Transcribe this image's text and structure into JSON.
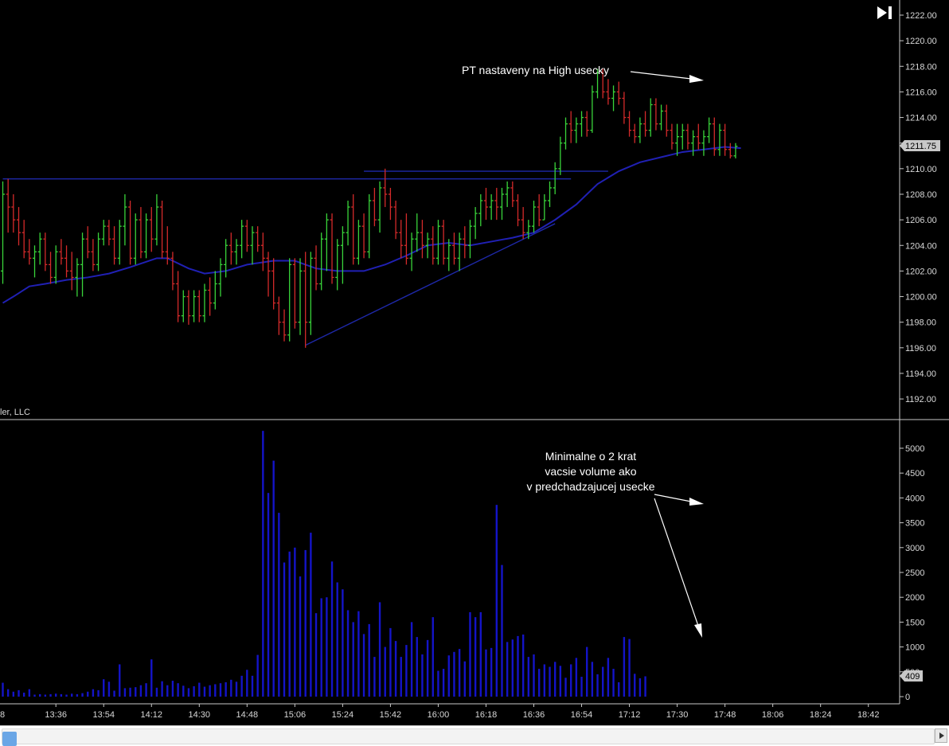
{
  "colors": {
    "background": "#000000",
    "up_bar": "#39d43a",
    "down_bar": "#d42a2a",
    "volume_bar": "#1414c8",
    "moving_average": "#2020b4",
    "trend_lines": "#1e28a8",
    "axis_text": "#d8d8d8",
    "annotation_text": "#ffffff",
    "price_marker_bg": "#c8c8c8"
  },
  "branding": {
    "vendor_text": "ler, LLC"
  },
  "annotations": {
    "pt_note": "PT nastaveny na High usecky",
    "volume_note_line1": "Minimalne o 2 krat",
    "volume_note_line2": "vacsie volume ako",
    "volume_note_line3": "v predchadzajucej usecke"
  },
  "markers": {
    "last_price": "1211.75",
    "last_volume": "409"
  },
  "icons": {
    "jump_to_end": "jump-to-end-icon"
  },
  "chart_data": [
    {
      "type": "ohlc",
      "title": "",
      "ylim": [
        1190,
        1223
      ],
      "yticks": [
        1192,
        1194,
        1196,
        1198,
        1200,
        1202,
        1204,
        1206,
        1208,
        1210,
        1212,
        1214,
        1216,
        1218,
        1220,
        1222
      ],
      "ytick_labels": [
        "1192.00",
        "1194.00",
        "1196.00",
        "1198.00",
        "1200.00",
        "1202.00",
        "1204.00",
        "1206.00",
        "1208.00",
        "1210.00",
        "1212.00",
        "1214.00",
        "1216.00",
        "1218.00",
        "1220.00",
        "1222.00"
      ],
      "time_start": "13:16",
      "bar_minutes": 2,
      "bars": [
        [
          1202.0,
          1209.0,
          1201.0,
          1208.0
        ],
        [
          1208.0,
          1209.2,
          1205.0,
          1207.0
        ],
        [
          1207.0,
          1208.0,
          1205.0,
          1206.0
        ],
        [
          1206.0,
          1207.0,
          1204.0,
          1205.0
        ],
        [
          1205.0,
          1206.0,
          1203.0,
          1203.5
        ],
        [
          1203.5,
          1204.5,
          1202.5,
          1203.0
        ],
        [
          1203.0,
          1204.0,
          1201.5,
          1203.5
        ],
        [
          1203.5,
          1205.0,
          1202.5,
          1204.5
        ],
        [
          1204.5,
          1205.0,
          1202.0,
          1202.5
        ],
        [
          1202.5,
          1203.5,
          1201.0,
          1201.5
        ],
        [
          1201.5,
          1204.0,
          1201.0,
          1203.5
        ],
        [
          1203.5,
          1204.5,
          1202.5,
          1203.0
        ],
        [
          1203.0,
          1204.0,
          1201.5,
          1202.0
        ],
        [
          1202.0,
          1203.5,
          1200.5,
          1201.5
        ],
        [
          1201.5,
          1203.0,
          1200.0,
          1202.5
        ],
        [
          1202.5,
          1205.0,
          1200.0,
          1204.5
        ],
        [
          1204.5,
          1205.5,
          1203.0,
          1203.5
        ],
        [
          1203.5,
          1204.5,
          1202.0,
          1202.5
        ],
        [
          1202.5,
          1205.0,
          1202.0,
          1204.5
        ],
        [
          1204.5,
          1206.0,
          1204.0,
          1205.5
        ],
        [
          1205.5,
          1206.0,
          1204.0,
          1204.5
        ],
        [
          1204.5,
          1205.5,
          1202.5,
          1203.0
        ],
        [
          1203.0,
          1206.0,
          1202.5,
          1205.5
        ],
        [
          1205.5,
          1208.0,
          1204.0,
          1207.0
        ],
        [
          1207.0,
          1207.5,
          1202.5,
          1203.0
        ],
        [
          1203.0,
          1206.5,
          1202.5,
          1206.0
        ],
        [
          1206.0,
          1207.0,
          1203.0,
          1203.5
        ],
        [
          1203.5,
          1206.5,
          1203.0,
          1206.0
        ],
        [
          1206.0,
          1207.0,
          1203.5,
          1204.5
        ],
        [
          1204.5,
          1208.0,
          1204.0,
          1207.0
        ],
        [
          1207.0,
          1207.5,
          1203.0,
          1203.5
        ],
        [
          1203.5,
          1205.5,
          1202.5,
          1203.0
        ],
        [
          1203.0,
          1203.5,
          1200.5,
          1201.0
        ],
        [
          1201.0,
          1202.0,
          1198.0,
          1198.5
        ],
        [
          1198.5,
          1200.5,
          1198.0,
          1200.0
        ],
        [
          1200.0,
          1200.5,
          1197.8,
          1198.5
        ],
        [
          1198.5,
          1200.5,
          1198.0,
          1200.0
        ],
        [
          1200.0,
          1200.5,
          1198.0,
          1198.5
        ],
        [
          1198.5,
          1201.0,
          1198.0,
          1200.5
        ],
        [
          1200.5,
          1201.5,
          1198.5,
          1199.5
        ],
        [
          1199.5,
          1202.0,
          1199.0,
          1201.0
        ],
        [
          1201.0,
          1203.0,
          1200.0,
          1202.5
        ],
        [
          1202.5,
          1204.5,
          1201.5,
          1204.0
        ],
        [
          1204.0,
          1205.0,
          1202.5,
          1203.5
        ],
        [
          1203.5,
          1204.5,
          1202.5,
          1204.0
        ],
        [
          1204.0,
          1206.0,
          1203.0,
          1205.5
        ],
        [
          1205.5,
          1206.0,
          1203.5,
          1204.0
        ],
        [
          1204.0,
          1205.5,
          1202.5,
          1205.0
        ],
        [
          1205.0,
          1205.5,
          1203.5,
          1204.0
        ],
        [
          1204.0,
          1205.0,
          1202.0,
          1203.0
        ],
        [
          1203.0,
          1203.5,
          1200.0,
          1202.0
        ],
        [
          1202.0,
          1203.0,
          1199.0,
          1199.5
        ],
        [
          1199.5,
          1200.0,
          1197.0,
          1198.0
        ],
        [
          1198.0,
          1199.0,
          1196.5,
          1197.0
        ],
        [
          1197.0,
          1203.0,
          1196.5,
          1202.5
        ],
        [
          1202.5,
          1203.0,
          1197.5,
          1198.0
        ],
        [
          1198.0,
          1203.0,
          1197.0,
          1202.0
        ],
        [
          1202.0,
          1203.5,
          1196.0,
          1198.0
        ],
        [
          1198.0,
          1203.5,
          1197.0,
          1203.0
        ],
        [
          1203.0,
          1204.0,
          1200.5,
          1201.0
        ],
        [
          1201.0,
          1205.0,
          1200.5,
          1204.5
        ],
        [
          1204.5,
          1206.5,
          1202.0,
          1206.0
        ],
        [
          1206.0,
          1206.5,
          1201.0,
          1201.5
        ],
        [
          1201.5,
          1204.5,
          1200.5,
          1204.0
        ],
        [
          1204.0,
          1205.5,
          1201.0,
          1205.0
        ],
        [
          1205.0,
          1207.5,
          1204.0,
          1207.0
        ],
        [
          1207.0,
          1208.0,
          1202.5,
          1203.0
        ],
        [
          1203.0,
          1206.0,
          1202.5,
          1205.5
        ],
        [
          1205.5,
          1206.5,
          1203.0,
          1203.5
        ],
        [
          1203.5,
          1208.0,
          1203.0,
          1207.5
        ],
        [
          1207.5,
          1208.5,
          1205.5,
          1206.0
        ],
        [
          1206.0,
          1209.0,
          1205.0,
          1208.5
        ],
        [
          1208.5,
          1210.0,
          1207.0,
          1208.0
        ],
        [
          1208.0,
          1208.5,
          1206.0,
          1207.0
        ],
        [
          1207.0,
          1207.5,
          1204.5,
          1205.0
        ],
        [
          1205.0,
          1206.0,
          1203.0,
          1204.0
        ],
        [
          1204.0,
          1206.5,
          1202.5,
          1203.0
        ],
        [
          1203.0,
          1205.0,
          1202.0,
          1204.5
        ],
        [
          1204.5,
          1206.5,
          1203.5,
          1205.0
        ],
        [
          1205.0,
          1206.0,
          1203.0,
          1204.0
        ],
        [
          1204.0,
          1205.0,
          1203.0,
          1204.5
        ],
        [
          1204.5,
          1205.5,
          1202.5,
          1203.0
        ],
        [
          1203.0,
          1206.0,
          1202.5,
          1205.5
        ],
        [
          1205.5,
          1206.0,
          1202.5,
          1203.0
        ],
        [
          1203.0,
          1204.5,
          1202.0,
          1204.0
        ],
        [
          1204.0,
          1205.0,
          1202.5,
          1203.0
        ],
        [
          1203.0,
          1205.0,
          1202.0,
          1204.5
        ],
        [
          1204.5,
          1205.5,
          1203.0,
          1204.0
        ],
        [
          1204.0,
          1206.0,
          1203.0,
          1205.5
        ],
        [
          1205.5,
          1207.0,
          1204.5,
          1206.5
        ],
        [
          1206.5,
          1208.0,
          1205.5,
          1207.5
        ],
        [
          1207.5,
          1208.5,
          1206.0,
          1207.0
        ],
        [
          1207.0,
          1208.0,
          1206.0,
          1207.5
        ],
        [
          1207.5,
          1208.5,
          1206.0,
          1207.0
        ],
        [
          1207.0,
          1208.5,
          1206.0,
          1208.0
        ],
        [
          1208.0,
          1209.0,
          1207.0,
          1208.5
        ],
        [
          1208.5,
          1209.0,
          1207.0,
          1207.5
        ],
        [
          1207.5,
          1208.0,
          1205.5,
          1206.0
        ],
        [
          1206.0,
          1207.0,
          1204.5,
          1205.0
        ],
        [
          1205.0,
          1206.0,
          1204.5,
          1205.5
        ],
        [
          1205.5,
          1207.5,
          1205.0,
          1207.0
        ],
        [
          1207.0,
          1208.0,
          1205.5,
          1206.0
        ],
        [
          1206.0,
          1208.0,
          1206.0,
          1207.5
        ],
        [
          1207.5,
          1209.0,
          1207.0,
          1208.5
        ],
        [
          1208.5,
          1210.5,
          1208.0,
          1210.0
        ],
        [
          1210.0,
          1212.5,
          1209.5,
          1212.0
        ],
        [
          1212.0,
          1214.0,
          1211.5,
          1213.5
        ],
        [
          1213.5,
          1214.5,
          1212.0,
          1213.0
        ],
        [
          1213.0,
          1214.0,
          1212.0,
          1213.5
        ],
        [
          1213.5,
          1214.5,
          1212.5,
          1214.0
        ],
        [
          1214.0,
          1214.5,
          1212.5,
          1213.0
        ],
        [
          1213.0,
          1216.5,
          1212.8,
          1216.0
        ],
        [
          1216.0,
          1217.8,
          1215.5,
          1217.5
        ],
        [
          1217.5,
          1217.8,
          1215.5,
          1216.0
        ],
        [
          1216.0,
          1217.0,
          1215.0,
          1215.5
        ],
        [
          1215.5,
          1216.5,
          1214.5,
          1216.0
        ],
        [
          1216.0,
          1216.8,
          1215.0,
          1215.5
        ],
        [
          1215.5,
          1216.0,
          1213.5,
          1214.0
        ],
        [
          1214.0,
          1214.5,
          1212.5,
          1213.0
        ],
        [
          1213.0,
          1213.5,
          1212.0,
          1212.5
        ],
        [
          1212.5,
          1214.0,
          1212.0,
          1213.5
        ],
        [
          1213.5,
          1214.5,
          1212.5,
          1213.0
        ],
        [
          1213.0,
          1215.5,
          1212.5,
          1215.0
        ],
        [
          1215.0,
          1215.5,
          1213.0,
          1213.5
        ],
        [
          1213.5,
          1215.0,
          1213.0,
          1214.5
        ],
        [
          1214.5,
          1215.0,
          1212.5,
          1213.0
        ],
        [
          1213.0,
          1213.5,
          1211.5,
          1212.0
        ],
        [
          1212.0,
          1213.5,
          1211.0,
          1212.5
        ],
        [
          1212.5,
          1213.5,
          1211.5,
          1213.0
        ],
        [
          1213.0,
          1213.5,
          1211.5,
          1212.0
        ],
        [
          1212.0,
          1213.0,
          1211.0,
          1212.5
        ],
        [
          1212.5,
          1213.5,
          1211.5,
          1212.0
        ],
        [
          1212.0,
          1213.0,
          1211.0,
          1212.5
        ],
        [
          1212.5,
          1214.0,
          1212.0,
          1213.5
        ],
        [
          1213.5,
          1214.0,
          1211.0,
          1211.5
        ],
        [
          1211.5,
          1213.5,
          1211.0,
          1213.0
        ],
        [
          1213.0,
          1213.5,
          1211.0,
          1211.5
        ],
        [
          1211.5,
          1212.0,
          1210.8,
          1211.0
        ],
        [
          1211.0,
          1212.0,
          1210.8,
          1211.75
        ]
      ],
      "moving_average": [
        [
          1199.5,
          0
        ],
        [
          1200.0,
          2
        ],
        [
          1200.8,
          5
        ],
        [
          1201.0,
          8
        ],
        [
          1201.3,
          12
        ],
        [
          1201.5,
          16
        ],
        [
          1201.8,
          20
        ],
        [
          1202.3,
          24
        ],
        [
          1203.0,
          29
        ],
        [
          1203.0,
          31
        ],
        [
          1202.2,
          35
        ],
        [
          1201.8,
          38
        ],
        [
          1202.0,
          42
        ],
        [
          1202.5,
          46
        ],
        [
          1202.8,
          51
        ],
        [
          1202.8,
          55
        ],
        [
          1202.2,
          59
        ],
        [
          1202.0,
          63
        ],
        [
          1202.0,
          68
        ],
        [
          1202.5,
          72
        ],
        [
          1203.2,
          76
        ],
        [
          1204.0,
          80
        ],
        [
          1204.2,
          84
        ],
        [
          1204.0,
          88
        ],
        [
          1204.3,
          92
        ],
        [
          1204.6,
          96
        ],
        [
          1205.0,
          100
        ],
        [
          1206.0,
          104
        ],
        [
          1207.2,
          108
        ],
        [
          1208.8,
          112
        ],
        [
          1209.8,
          116
        ],
        [
          1210.5,
          120
        ],
        [
          1210.9,
          124
        ],
        [
          1211.3,
          128
        ],
        [
          1211.5,
          132
        ],
        [
          1211.7,
          136
        ],
        [
          1211.6,
          139
        ]
      ],
      "trend_lines": [
        {
          "from": [
            0,
            1209.2
          ],
          "to": [
            107,
            1209.2
          ]
        },
        {
          "from": [
            68,
            1209.8
          ],
          "to": [
            114,
            1209.8
          ]
        },
        {
          "from": [
            57,
            1196.2
          ],
          "to": [
            104,
            1205.7
          ]
        }
      ]
    },
    {
      "type": "bar",
      "title": "",
      "ylim": [
        0,
        5500
      ],
      "yticks": [
        0,
        500,
        1000,
        1500,
        2000,
        2500,
        3000,
        3500,
        4000,
        4500,
        5000
      ],
      "ytick_labels": [
        "0",
        "500",
        "1000",
        "1500",
        "2000",
        "2500",
        "3000",
        "3500",
        "4000",
        "4500",
        "5000"
      ],
      "xtick_labels": [
        "13:36",
        "13:54",
        "14:12",
        "14:30",
        "14:48",
        "15:06",
        "15:24",
        "15:42",
        "16:00",
        "16:18",
        "16:36",
        "16:54",
        "17:12",
        "17:30",
        "17:48",
        "18:06",
        "18:24",
        "18:42"
      ],
      "xtick_bar_index": [
        10,
        19,
        28,
        37,
        46,
        55,
        64,
        73,
        82,
        91,
        100,
        109,
        118,
        127,
        136,
        145,
        154,
        163
      ],
      "x_leading_partial": "8",
      "values": [
        280,
        150,
        100,
        130,
        80,
        150,
        40,
        50,
        40,
        50,
        60,
        50,
        40,
        60,
        50,
        70,
        100,
        150,
        130,
        350,
        300,
        120,
        650,
        170,
        180,
        190,
        230,
        270,
        750,
        180,
        310,
        230,
        320,
        270,
        220,
        170,
        210,
        280,
        200,
        230,
        250,
        270,
        290,
        340,
        300,
        420,
        540,
        420,
        840,
        5350,
        4100,
        4750,
        3700,
        2700,
        2920,
        3000,
        2420,
        2950,
        3300,
        1680,
        1980,
        2000,
        2720,
        2300,
        2160,
        1740,
        1500,
        1720,
        1260,
        1460,
        800,
        1900,
        1000,
        1380,
        1120,
        800,
        1040,
        1500,
        1200,
        850,
        1140,
        1600,
        520,
        560,
        830,
        900,
        960,
        710,
        1700,
        1600,
        1700,
        950,
        980,
        3860,
        2650,
        1100,
        1150,
        1220,
        1250,
        800,
        850,
        560,
        650,
        600,
        700,
        620,
        380,
        650,
        780,
        400,
        1000,
        700,
        450,
        600,
        780,
        560,
        290,
        1200,
        1160,
        460,
        370,
        409
      ],
      "bar_offset": 0
    }
  ]
}
